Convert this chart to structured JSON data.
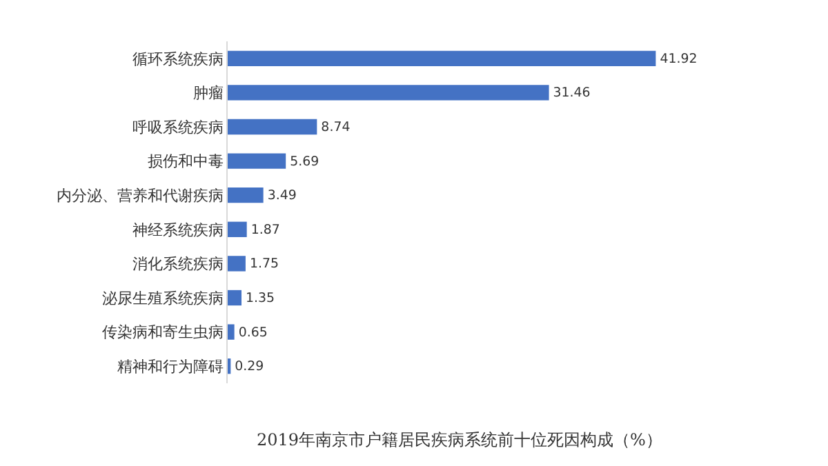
{
  "chart_data": {
    "type": "bar",
    "orientation": "horizontal",
    "title": "2019年南京市户籍居民疾病系统前十位死因构成（%）",
    "categories": [
      "循环系统疾病",
      "肿瘤",
      "呼吸系统疾病",
      "损伤和中毒",
      "内分泌、营养和代谢疾病",
      "神经系统疾病",
      "消化系统疾病",
      "泌尿生殖系统疾病",
      "传染病和寄生虫病",
      "精神和行为障碍"
    ],
    "values": [
      41.92,
      31.46,
      8.74,
      5.69,
      3.49,
      1.87,
      1.75,
      1.35,
      0.65,
      0.29
    ],
    "color": "#4472c4",
    "data_labels": true,
    "grid": false,
    "legend": false
  }
}
